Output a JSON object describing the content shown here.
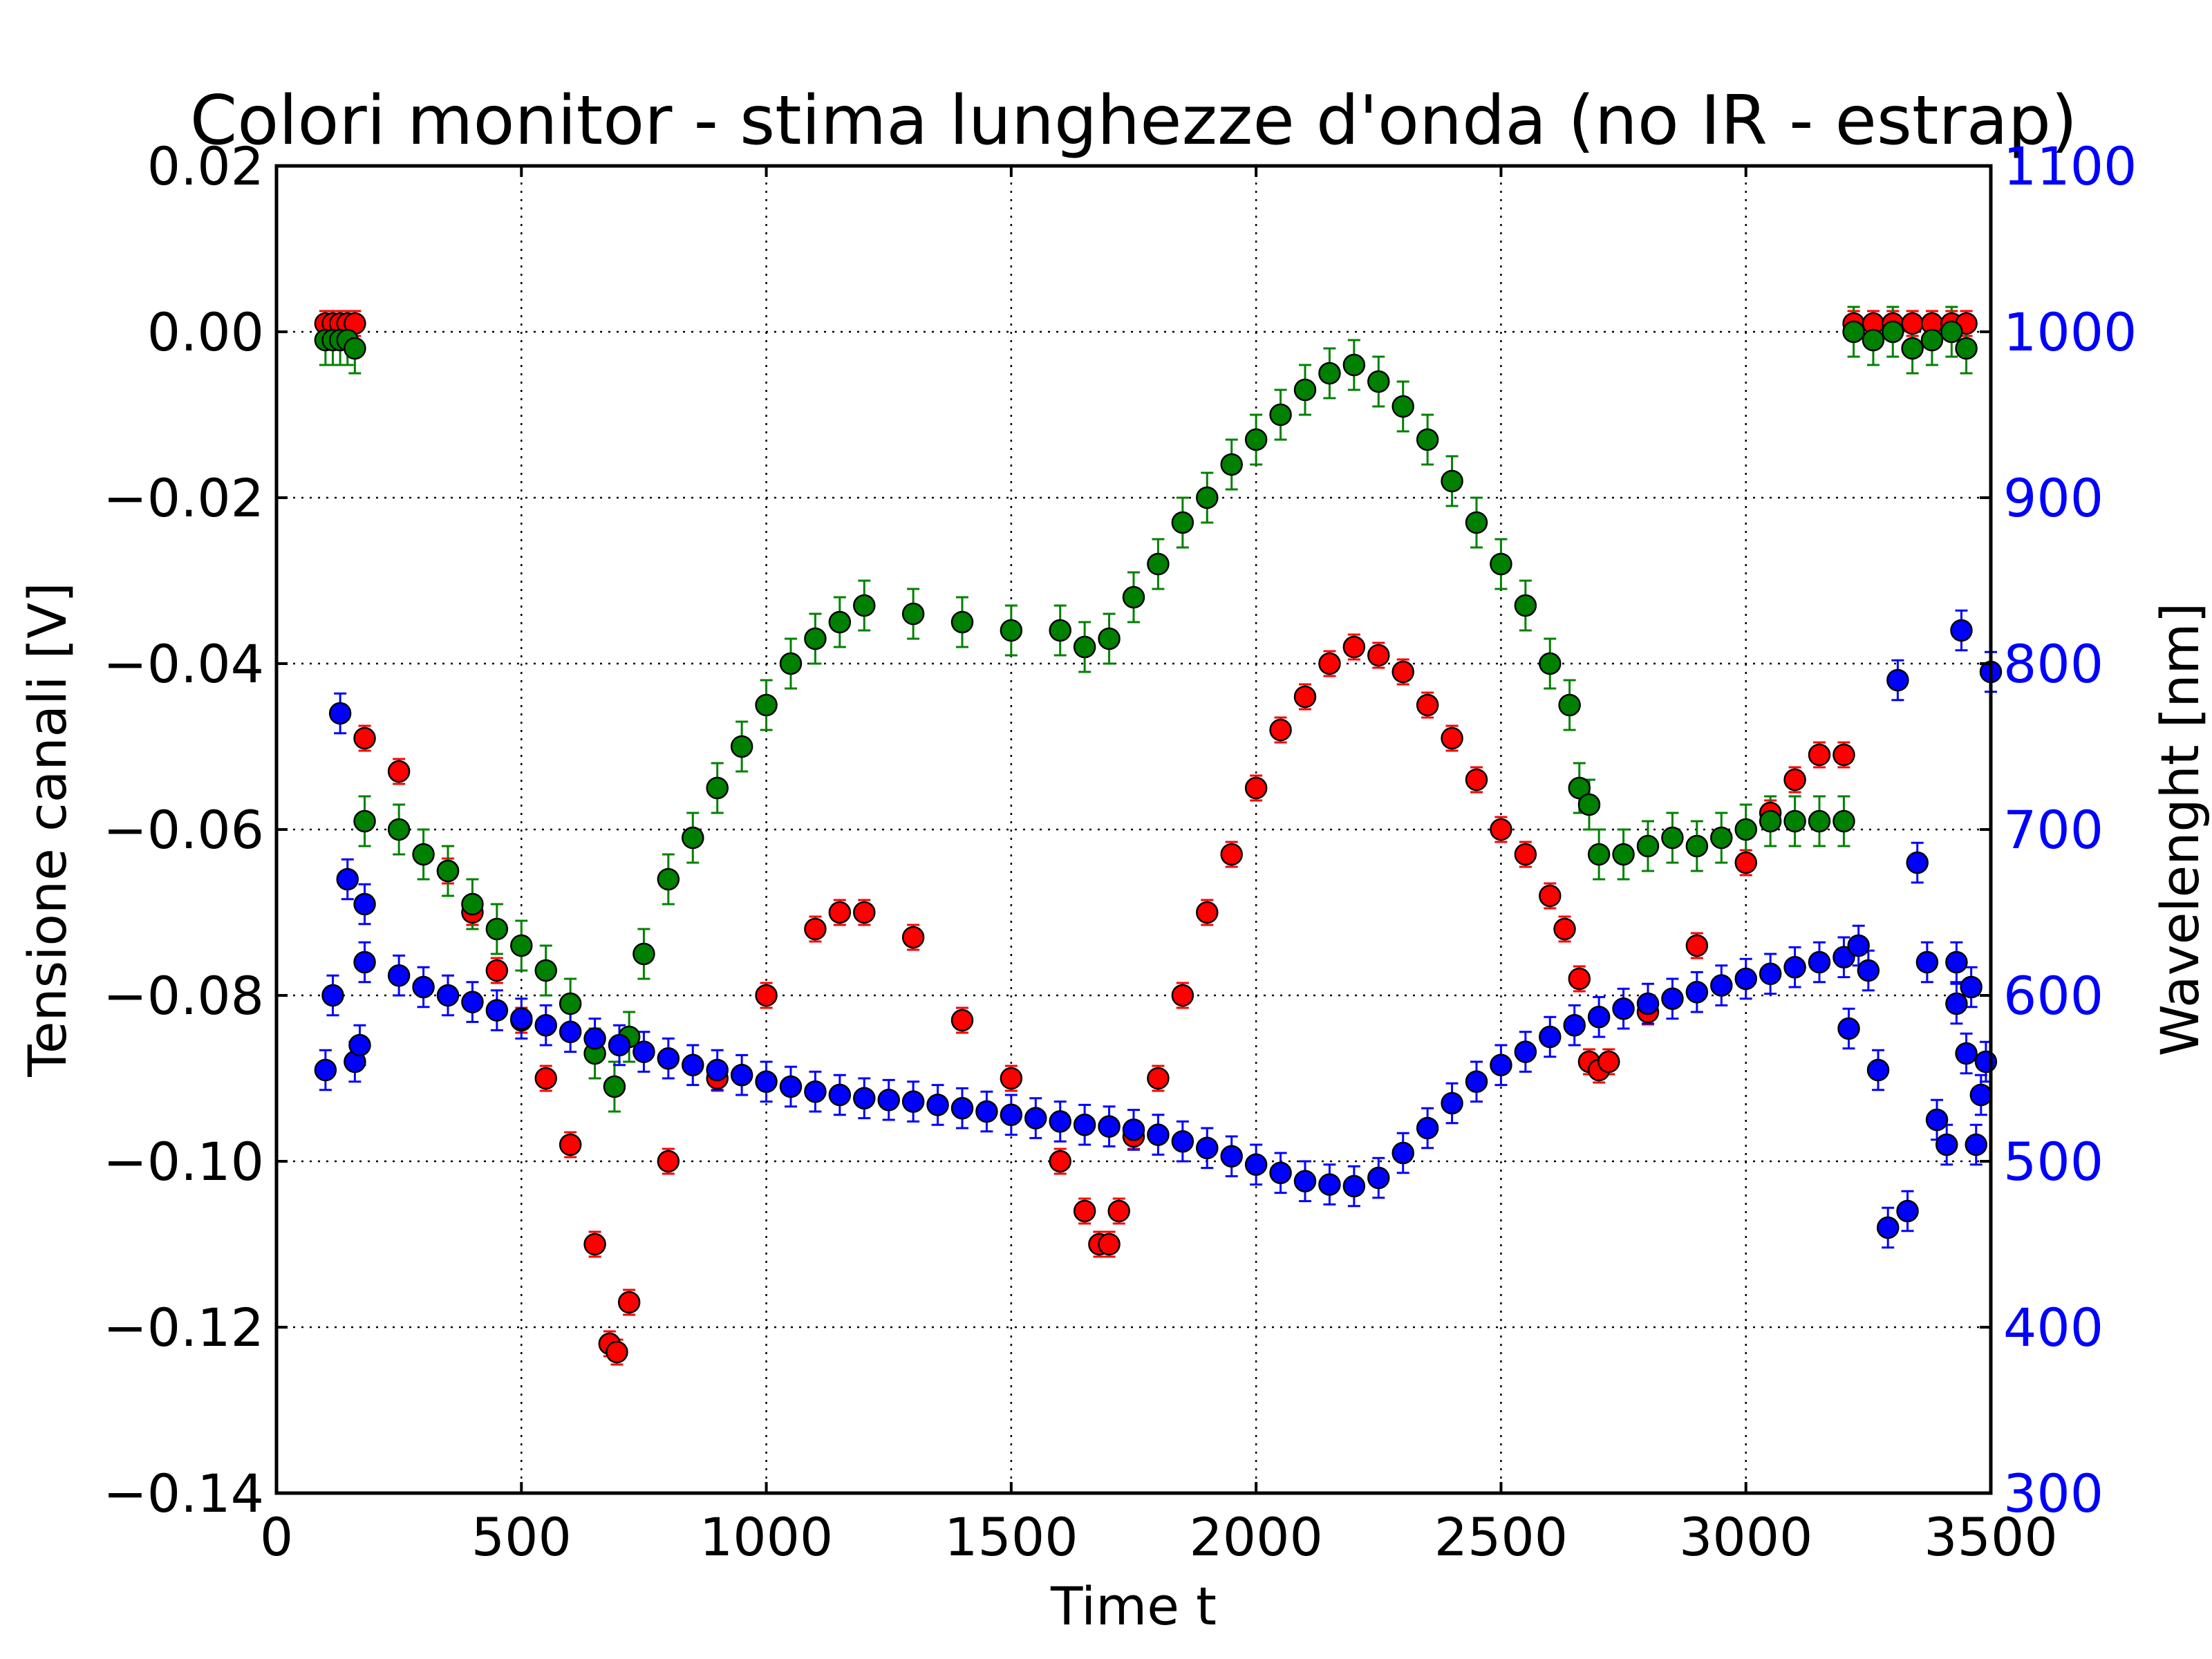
{
  "chart_data": {
    "type": "scatter",
    "title": "Colori monitor - stima lunghezze d'onda (no IR - estrap)",
    "xlabel": "Time t",
    "ylabel": "Tensione canali [V]",
    "y2label": "Wavelenght [nm]",
    "xlim": [
      0,
      3500
    ],
    "ylim": [
      -0.14,
      0.02
    ],
    "y2lim": [
      300,
      1100
    ],
    "xticks": [
      "0",
      "500",
      "1000",
      "1500",
      "2000",
      "2500",
      "3000",
      "3500"
    ],
    "yticks": [
      "0.02",
      "0.00",
      "−0.02",
      "−0.04",
      "−0.06",
      "−0.08",
      "−0.10",
      "−0.12",
      "−0.14"
    ],
    "y2ticks": [
      "1100",
      "1000",
      "900",
      "800",
      "700",
      "600",
      "500",
      "400",
      "300"
    ],
    "grid": true,
    "colors": {
      "red": "#ff0000",
      "green": "#008000",
      "blue": "#0000ff",
      "right_axis": "#0000ff"
    },
    "series": [
      {
        "color": "#ff0000",
        "axis": "left",
        "yerr": 0.0015,
        "points": [
          [
            100,
            0.001
          ],
          [
            115,
            0.001
          ],
          [
            130,
            0.001
          ],
          [
            145,
            0.001
          ],
          [
            160,
            0.001
          ],
          [
            180,
            -0.049
          ],
          [
            250,
            -0.053
          ],
          [
            350,
            -0.065
          ],
          [
            400,
            -0.07
          ],
          [
            450,
            -0.077
          ],
          [
            500,
            -0.083
          ],
          [
            550,
            -0.09
          ],
          [
            600,
            -0.098
          ],
          [
            650,
            -0.11
          ],
          [
            680,
            -0.122
          ],
          [
            695,
            -0.123
          ],
          [
            720,
            -0.117
          ],
          [
            800,
            -0.1
          ],
          [
            900,
            -0.09
          ],
          [
            1000,
            -0.08
          ],
          [
            1100,
            -0.072
          ],
          [
            1150,
            -0.07
          ],
          [
            1200,
            -0.07
          ],
          [
            1300,
            -0.073
          ],
          [
            1400,
            -0.083
          ],
          [
            1500,
            -0.09
          ],
          [
            1600,
            -0.1
          ],
          [
            1650,
            -0.106
          ],
          [
            1680,
            -0.11
          ],
          [
            1700,
            -0.11
          ],
          [
            1720,
            -0.106
          ],
          [
            1750,
            -0.097
          ],
          [
            1800,
            -0.09
          ],
          [
            1850,
            -0.08
          ],
          [
            1900,
            -0.07
          ],
          [
            1950,
            -0.063
          ],
          [
            2000,
            -0.055
          ],
          [
            2050,
            -0.048
          ],
          [
            2100,
            -0.044
          ],
          [
            2150,
            -0.04
          ],
          [
            2200,
            -0.038
          ],
          [
            2250,
            -0.039
          ],
          [
            2300,
            -0.041
          ],
          [
            2350,
            -0.045
          ],
          [
            2400,
            -0.049
          ],
          [
            2450,
            -0.054
          ],
          [
            2500,
            -0.06
          ],
          [
            2550,
            -0.063
          ],
          [
            2600,
            -0.068
          ],
          [
            2630,
            -0.072
          ],
          [
            2660,
            -0.078
          ],
          [
            2680,
            -0.088
          ],
          [
            2700,
            -0.089
          ],
          [
            2720,
            -0.088
          ],
          [
            2800,
            -0.082
          ],
          [
            2900,
            -0.074
          ],
          [
            3000,
            -0.064
          ],
          [
            3050,
            -0.058
          ],
          [
            3100,
            -0.054
          ],
          [
            3150,
            -0.051
          ],
          [
            3200,
            -0.051
          ],
          [
            3220,
            0.001
          ],
          [
            3260,
            0.001
          ],
          [
            3300,
            0.001
          ],
          [
            3340,
            0.001
          ],
          [
            3380,
            0.001
          ],
          [
            3420,
            0.001
          ],
          [
            3450,
            0.001
          ]
        ]
      },
      {
        "color": "#008000",
        "axis": "left",
        "yerr": 0.003,
        "points": [
          [
            100,
            -0.001
          ],
          [
            115,
            -0.001
          ],
          [
            130,
            -0.001
          ],
          [
            145,
            -0.001
          ],
          [
            160,
            -0.002
          ],
          [
            180,
            -0.059
          ],
          [
            250,
            -0.06
          ],
          [
            300,
            -0.063
          ],
          [
            350,
            -0.065
          ],
          [
            400,
            -0.069
          ],
          [
            450,
            -0.072
          ],
          [
            500,
            -0.074
          ],
          [
            550,
            -0.077
          ],
          [
            600,
            -0.081
          ],
          [
            650,
            -0.087
          ],
          [
            690,
            -0.091
          ],
          [
            720,
            -0.085
          ],
          [
            750,
            -0.075
          ],
          [
            800,
            -0.066
          ],
          [
            850,
            -0.061
          ],
          [
            900,
            -0.055
          ],
          [
            950,
            -0.05
          ],
          [
            1000,
            -0.045
          ],
          [
            1050,
            -0.04
          ],
          [
            1100,
            -0.037
          ],
          [
            1150,
            -0.035
          ],
          [
            1200,
            -0.033
          ],
          [
            1300,
            -0.034
          ],
          [
            1400,
            -0.035
          ],
          [
            1500,
            -0.036
          ],
          [
            1600,
            -0.036
          ],
          [
            1650,
            -0.038
          ],
          [
            1700,
            -0.037
          ],
          [
            1750,
            -0.032
          ],
          [
            1800,
            -0.028
          ],
          [
            1850,
            -0.023
          ],
          [
            1900,
            -0.02
          ],
          [
            1950,
            -0.016
          ],
          [
            2000,
            -0.013
          ],
          [
            2050,
            -0.01
          ],
          [
            2100,
            -0.007
          ],
          [
            2150,
            -0.005
          ],
          [
            2200,
            -0.004
          ],
          [
            2250,
            -0.006
          ],
          [
            2300,
            -0.009
          ],
          [
            2350,
            -0.013
          ],
          [
            2400,
            -0.018
          ],
          [
            2450,
            -0.023
          ],
          [
            2500,
            -0.028
          ],
          [
            2550,
            -0.033
          ],
          [
            2600,
            -0.04
          ],
          [
            2640,
            -0.045
          ],
          [
            2660,
            -0.055
          ],
          [
            2680,
            -0.057
          ],
          [
            2700,
            -0.063
          ],
          [
            2750,
            -0.063
          ],
          [
            2800,
            -0.062
          ],
          [
            2850,
            -0.061
          ],
          [
            2900,
            -0.062
          ],
          [
            2950,
            -0.061
          ],
          [
            3000,
            -0.06
          ],
          [
            3050,
            -0.059
          ],
          [
            3100,
            -0.059
          ],
          [
            3150,
            -0.059
          ],
          [
            3200,
            -0.059
          ],
          [
            3220,
            0.0
          ],
          [
            3260,
            -0.001
          ],
          [
            3300,
            0.0
          ],
          [
            3340,
            -0.002
          ],
          [
            3380,
            -0.001
          ],
          [
            3420,
            0.0
          ],
          [
            3450,
            -0.002
          ]
        ]
      },
      {
        "color": "#0000ff",
        "axis": "right",
        "yerr": 12,
        "points": [
          [
            100,
            555
          ],
          [
            115,
            600
          ],
          [
            130,
            770
          ],
          [
            145,
            670
          ],
          [
            160,
            560
          ],
          [
            170,
            570
          ],
          [
            180,
            655
          ],
          [
            180,
            620
          ],
          [
            250,
            612
          ],
          [
            300,
            605
          ],
          [
            350,
            600
          ],
          [
            400,
            596
          ],
          [
            450,
            591
          ],
          [
            500,
            586
          ],
          [
            550,
            582
          ],
          [
            600,
            578
          ],
          [
            650,
            574
          ],
          [
            700,
            570
          ],
          [
            750,
            566
          ],
          [
            800,
            562
          ],
          [
            850,
            558
          ],
          [
            900,
            555
          ],
          [
            950,
            552
          ],
          [
            1000,
            548
          ],
          [
            1050,
            545
          ],
          [
            1100,
            542
          ],
          [
            1150,
            540
          ],
          [
            1200,
            538
          ],
          [
            1250,
            537
          ],
          [
            1300,
            536
          ],
          [
            1350,
            534
          ],
          [
            1400,
            532
          ],
          [
            1450,
            530
          ],
          [
            1500,
            528
          ],
          [
            1550,
            526
          ],
          [
            1600,
            524
          ],
          [
            1650,
            522
          ],
          [
            1700,
            521
          ],
          [
            1750,
            519
          ],
          [
            1800,
            516
          ],
          [
            1850,
            512
          ],
          [
            1900,
            508
          ],
          [
            1950,
            503
          ],
          [
            2000,
            498
          ],
          [
            2050,
            493
          ],
          [
            2100,
            488
          ],
          [
            2150,
            486
          ],
          [
            2200,
            485
          ],
          [
            2250,
            490
          ],
          [
            2300,
            505
          ],
          [
            2350,
            520
          ],
          [
            2400,
            535
          ],
          [
            2450,
            548
          ],
          [
            2500,
            558
          ],
          [
            2550,
            566
          ],
          [
            2600,
            575
          ],
          [
            2650,
            582
          ],
          [
            2700,
            587
          ],
          [
            2750,
            592
          ],
          [
            2800,
            595
          ],
          [
            2850,
            598
          ],
          [
            2900,
            602
          ],
          [
            2950,
            606
          ],
          [
            3000,
            610
          ],
          [
            3050,
            613
          ],
          [
            3100,
            617
          ],
          [
            3150,
            620
          ],
          [
            3200,
            623
          ],
          [
            3210,
            580
          ],
          [
            3230,
            630
          ],
          [
            3250,
            615
          ],
          [
            3270,
            555
          ],
          [
            3290,
            460
          ],
          [
            3310,
            790
          ],
          [
            3330,
            470
          ],
          [
            3350,
            680
          ],
          [
            3370,
            620
          ],
          [
            3390,
            525
          ],
          [
            3410,
            510
          ],
          [
            3430,
            620
          ],
          [
            3430,
            595
          ],
          [
            3440,
            820
          ],
          [
            3450,
            565
          ],
          [
            3460,
            605
          ],
          [
            3470,
            510
          ],
          [
            3480,
            540
          ],
          [
            3490,
            560
          ],
          [
            3500,
            795
          ]
        ]
      }
    ]
  }
}
